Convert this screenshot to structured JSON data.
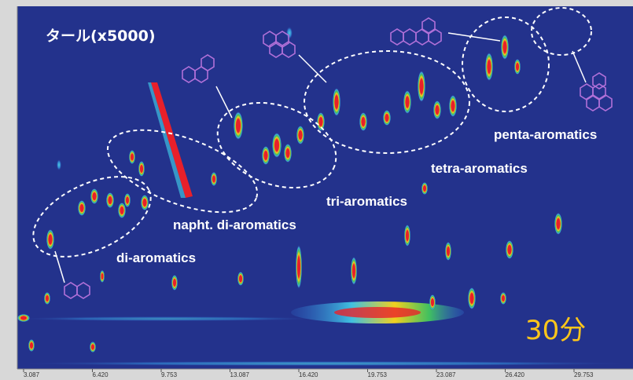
{
  "title": "タール(x5000)",
  "time": "30分",
  "groups": [
    "di-aromatics",
    "napht. di-aromatics",
    "tri-aromatics",
    "tetra-aromatics",
    "penta-aromatics"
  ],
  "x_axis_labels": [
    "3.087",
    "6.420",
    "9.753",
    "13.087",
    "16.420",
    "19.753",
    "23.087",
    "26.420",
    "29.753"
  ]
}
